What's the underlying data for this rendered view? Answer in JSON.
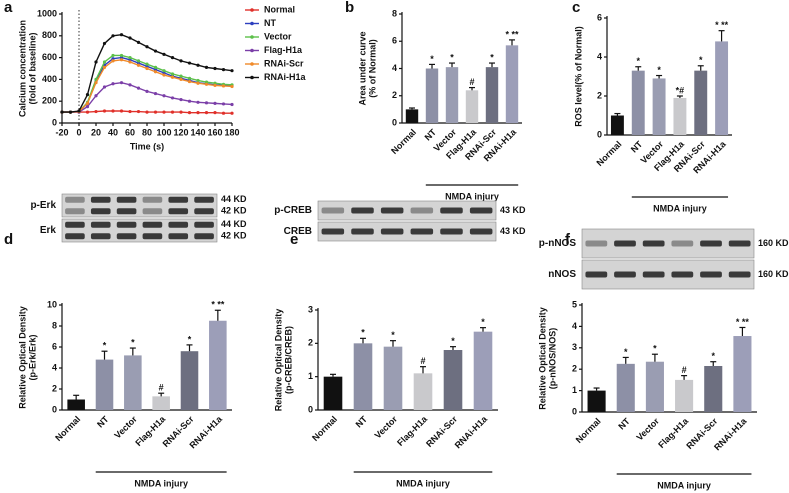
{
  "chart_data": [
    {
      "label": "a",
      "type": "line",
      "ylabel": [
        "Calcium concentration",
        "(fold of baseline)"
      ],
      "xlabel": "Time (s)",
      "x": [
        -20,
        -10,
        0,
        10,
        20,
        30,
        40,
        50,
        60,
        70,
        80,
        90,
        100,
        110,
        120,
        130,
        140,
        150,
        160,
        170,
        180
      ],
      "xlim": [
        -20,
        180
      ],
      "xticks": [
        -20,
        0,
        20,
        40,
        60,
        80,
        100,
        120,
        140,
        160,
        180
      ],
      "ylim": [
        0,
        1000
      ],
      "yticks": [
        0,
        200,
        400,
        600,
        800,
        1000
      ],
      "series": [
        {
          "name": "Normal",
          "color": "#e0302a",
          "values": [
            100,
            100,
            100,
            100,
            105,
            110,
            110,
            110,
            105,
            105,
            100,
            100,
            100,
            100,
            100,
            95,
            95,
            95,
            95,
            90,
            90
          ]
        },
        {
          "name": "NT",
          "color": "#2d3fbf",
          "values": [
            100,
            100,
            105,
            180,
            380,
            530,
            590,
            600,
            580,
            550,
            520,
            490,
            460,
            430,
            410,
            390,
            370,
            360,
            350,
            345,
            340
          ]
        },
        {
          "name": "Vector",
          "color": "#5cc04a",
          "values": [
            100,
            100,
            105,
            190,
            400,
            560,
            620,
            620,
            600,
            570,
            540,
            510,
            480,
            450,
            430,
            410,
            390,
            375,
            365,
            355,
            350
          ]
        },
        {
          "name": "Flag-H1a",
          "color": "#7b3fa8",
          "values": [
            100,
            100,
            100,
            150,
            250,
            330,
            360,
            370,
            350,
            320,
            290,
            270,
            250,
            230,
            215,
            200,
            190,
            185,
            180,
            175,
            170
          ]
        },
        {
          "name": "RNAi-Scr",
          "color": "#f08a2a",
          "values": [
            100,
            100,
            105,
            180,
            370,
            510,
            570,
            580,
            560,
            530,
            500,
            470,
            440,
            420,
            400,
            380,
            365,
            355,
            345,
            340,
            335
          ]
        },
        {
          "name": "RNAi-H1a",
          "color": "#111111",
          "values": [
            100,
            100,
            110,
            260,
            560,
            730,
            800,
            810,
            780,
            740,
            700,
            660,
            630,
            600,
            570,
            550,
            530,
            510,
            500,
            490,
            480
          ]
        }
      ]
    },
    {
      "label": "b",
      "type": "bar",
      "ylabel": [
        "Area under curve",
        "(% of Normal)"
      ],
      "group_label": "NMDA injury",
      "categories": [
        "Normal",
        "NT",
        "Vector",
        "Flag-H1a",
        "RNAi-Scr",
        "RNAi-H1a"
      ],
      "values": [
        1.0,
        4.0,
        4.1,
        2.4,
        4.1,
        5.7
      ],
      "errors": [
        0.1,
        0.3,
        0.3,
        0.2,
        0.3,
        0.4
      ],
      "annotations": [
        null,
        "*",
        "*",
        "#",
        "*",
        "* **"
      ],
      "colors": [
        "#111111",
        "#8d90a6",
        "#9a9db2",
        "#c9c9cc",
        "#6d6f80",
        "#9c9eb8"
      ],
      "ylim": [
        0,
        8
      ],
      "yticks": [
        0,
        2,
        4,
        6,
        8
      ]
    },
    {
      "label": "c",
      "type": "bar",
      "ylabel": [
        "ROS level(% of Normal)"
      ],
      "group_label": "NMDA injury",
      "categories": [
        "Normal",
        "NT",
        "Vector",
        "Flag-H1a",
        "RNAi-Scr",
        "RNAi-H1a"
      ],
      "values": [
        1.0,
        3.3,
        2.9,
        1.9,
        3.3,
        4.8
      ],
      "errors": [
        0.1,
        0.2,
        0.15,
        0.1,
        0.25,
        0.55
      ],
      "annotations": [
        null,
        "*",
        "*",
        "*#",
        "*",
        "* **"
      ],
      "colors": [
        "#111111",
        "#8d90a6",
        "#9a9db2",
        "#c9c9cc",
        "#6d6f80",
        "#9c9eb8"
      ],
      "ylim": [
        0,
        6
      ],
      "yticks": [
        0,
        2,
        4,
        6
      ]
    },
    {
      "label": "d",
      "type": "bar",
      "ylabel": [
        "Relative Optical Density",
        "(p-Erk/Erk)"
      ],
      "group_label": "NMDA injury",
      "blot": [
        {
          "name": "p-Erk",
          "kd": [
            "44 KD",
            "42 KD"
          ]
        },
        {
          "name": "Erk",
          "kd": [
            "44 KD",
            "42 KD"
          ]
        }
      ],
      "categories": [
        "Normal",
        "NT",
        "Vector",
        "Flag-H1a",
        "RNAi-Scr",
        "RNAi-H1a"
      ],
      "values": [
        1.0,
        4.8,
        5.2,
        1.3,
        5.6,
        8.5
      ],
      "errors": [
        0.4,
        0.8,
        0.7,
        0.3,
        0.6,
        1.0
      ],
      "annotations": [
        null,
        "*",
        "*",
        "#",
        "*",
        "* **"
      ],
      "colors": [
        "#111111",
        "#8d90a6",
        "#9a9db2",
        "#c9c9cc",
        "#6d6f80",
        "#9c9eb8"
      ],
      "ylim": [
        0,
        10
      ],
      "yticks": [
        0,
        2,
        4,
        6,
        8,
        10
      ]
    },
    {
      "label": "e",
      "type": "bar",
      "ylabel": [
        "Relative Optical Density",
        "(p-CREB/CREB)"
      ],
      "group_label": "NMDA injury",
      "blot": [
        {
          "name": "p-CREB",
          "kd": [
            "43 KD"
          ]
        },
        {
          "name": "CREB",
          "kd": [
            "43 KD"
          ]
        }
      ],
      "categories": [
        "Normal",
        "NT",
        "Vector",
        "Flag-H1a",
        "RNAi-Scr",
        "RNAi-H1a"
      ],
      "values": [
        1.0,
        2.0,
        1.9,
        1.1,
        1.8,
        2.35
      ],
      "errors": [
        0.07,
        0.15,
        0.18,
        0.2,
        0.1,
        0.12
      ],
      "annotations": [
        null,
        "*",
        "*",
        "#",
        "*",
        "*"
      ],
      "colors": [
        "#111111",
        "#8d90a6",
        "#9a9db2",
        "#c9c9cc",
        "#6d6f80",
        "#9c9eb8"
      ],
      "ylim": [
        0,
        3
      ],
      "yticks": [
        0,
        1,
        2,
        3
      ]
    },
    {
      "label": "f",
      "type": "bar",
      "ylabel": [
        "Relative Optical Density",
        "(p-nNOS/NOS)"
      ],
      "group_label": "NMDA injury",
      "blot": [
        {
          "name": "p-nNOS",
          "kd": [
            "160 KD"
          ]
        },
        {
          "name": "nNOS",
          "kd": [
            "160 KD"
          ]
        }
      ],
      "categories": [
        "Normal",
        "NT",
        "Vector",
        "Flag-H1a",
        "RNAi-Scr",
        "RNAi-H1a"
      ],
      "values": [
        1.0,
        2.25,
        2.35,
        1.5,
        2.15,
        3.55
      ],
      "errors": [
        0.12,
        0.3,
        0.35,
        0.2,
        0.2,
        0.4
      ],
      "annotations": [
        null,
        "*",
        "*",
        "#",
        "*",
        "* **"
      ],
      "colors": [
        "#111111",
        "#8d90a6",
        "#9a9db2",
        "#c9c9cc",
        "#6d6f80",
        "#9c9eb8"
      ],
      "ylim": [
        0,
        5
      ],
      "yticks": [
        0,
        1,
        2,
        3,
        4,
        5
      ]
    }
  ]
}
